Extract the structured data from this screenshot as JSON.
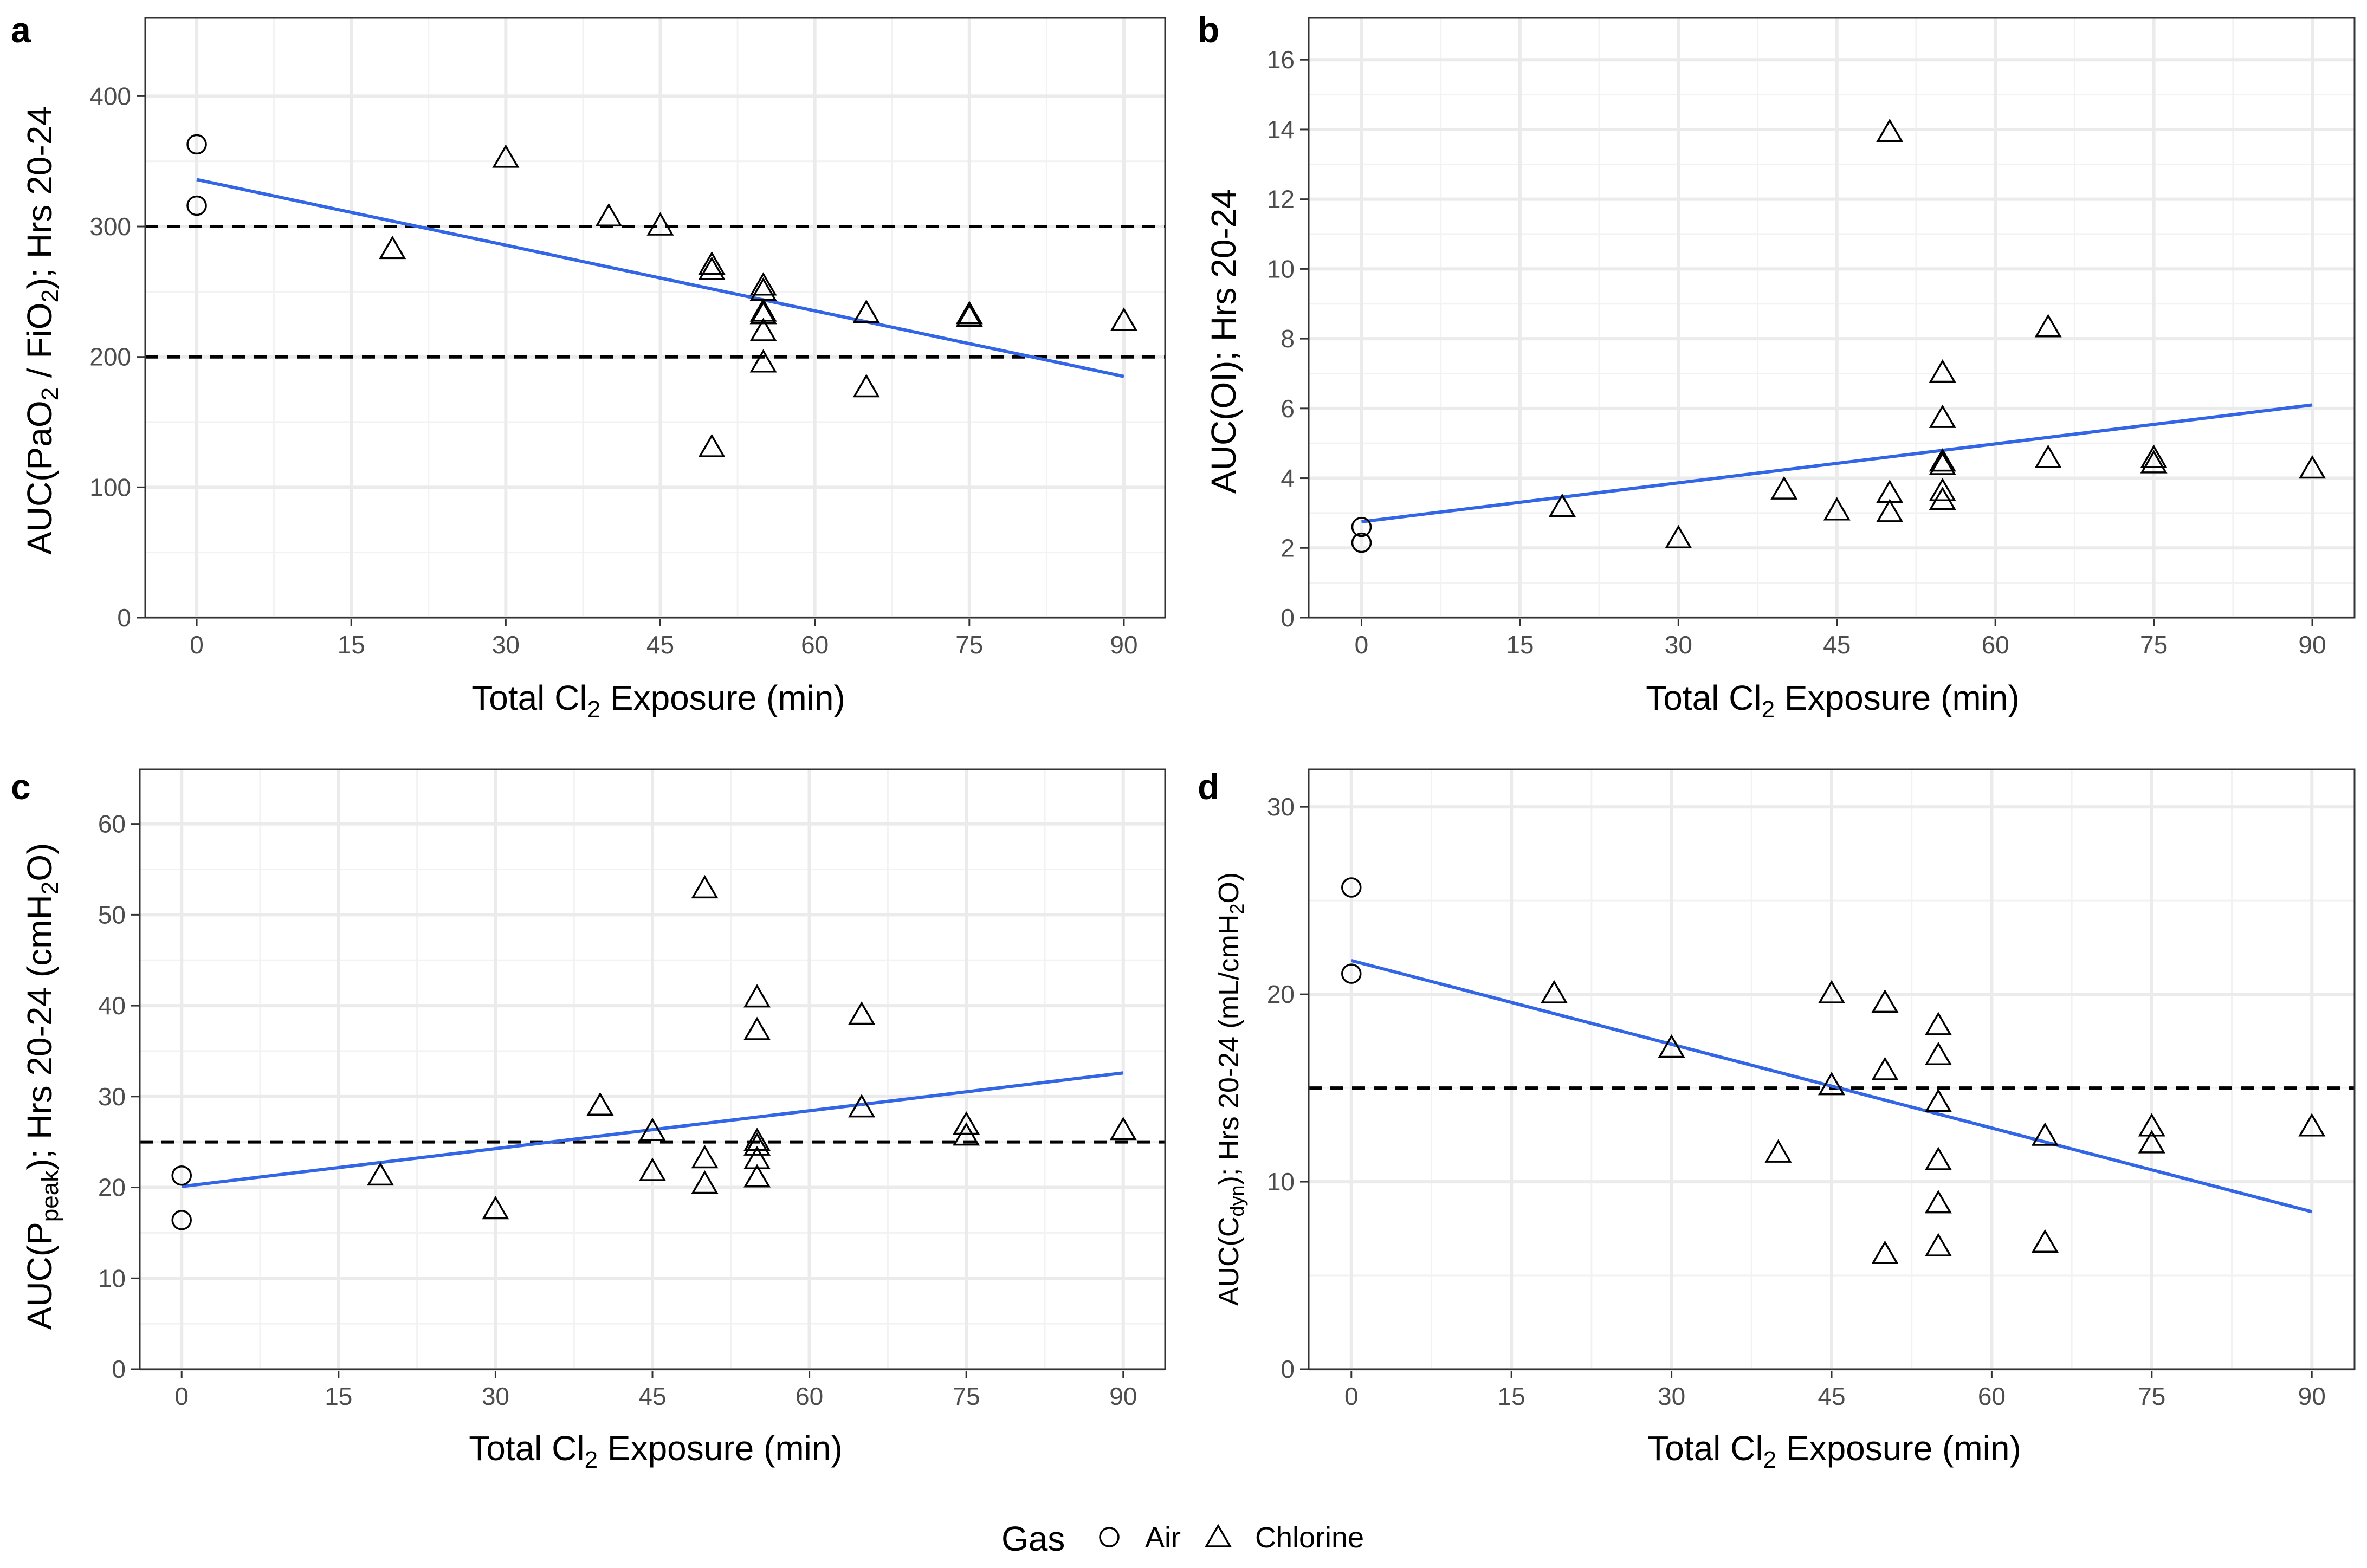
{
  "colors": {
    "fit_line": "#3366e6",
    "reference_line": "#000000",
    "grid": "#ebebeb",
    "points": "#000000"
  },
  "legend": {
    "title": "Gas",
    "items": [
      {
        "label": "Air",
        "shape": "circle"
      },
      {
        "label": "Chlorine",
        "shape": "triangle"
      }
    ]
  },
  "chart_data": [
    {
      "type": "scatter",
      "panel": "a",
      "title": "",
      "xlabel": "Total Cl2 Exposure (min)",
      "ylabel": "AUC(PaO2 / FiO2); Hrs 20-24",
      "xlim": [
        -5,
        94
      ],
      "ylim": [
        0,
        460
      ],
      "xticks": [
        0,
        15,
        30,
        45,
        60,
        75,
        90
      ],
      "yticks": [
        0,
        100,
        200,
        300,
        400
      ],
      "reference_lines": [
        300,
        200
      ],
      "fit_line": {
        "x": [
          0,
          90
        ],
        "y": [
          336,
          185
        ]
      },
      "series": [
        {
          "name": "Air",
          "shape": "circle",
          "points": [
            [
              0,
              363
            ],
            [
              0,
              316
            ]
          ]
        },
        {
          "name": "Chlorine",
          "shape": "triangle",
          "points": [
            [
              19,
              282
            ],
            [
              30,
              352
            ],
            [
              40,
              307
            ],
            [
              45,
              300
            ],
            [
              50,
              270
            ],
            [
              50,
              266
            ],
            [
              50,
              130
            ],
            [
              55,
              254
            ],
            [
              55,
              250
            ],
            [
              55,
              234
            ],
            [
              55,
              232
            ],
            [
              55,
              219
            ],
            [
              55,
              195
            ],
            [
              65,
              233
            ],
            [
              65,
              176
            ],
            [
              75,
              232
            ],
            [
              75,
              230
            ],
            [
              90,
              227
            ]
          ]
        }
      ]
    },
    {
      "type": "scatter",
      "panel": "b",
      "title": "",
      "xlabel": "Total Cl2 Exposure (min)",
      "ylabel": "AUC(OI); Hrs 20-24",
      "xlim": [
        -5,
        94
      ],
      "ylim": [
        0,
        17.2
      ],
      "xticks": [
        0,
        15,
        30,
        45,
        60,
        75,
        90
      ],
      "yticks": [
        0,
        2,
        4,
        6,
        8,
        10,
        12,
        14,
        16
      ],
      "reference_lines": [],
      "fit_line": {
        "x": [
          0,
          90
        ],
        "y": [
          2.75,
          6.1
        ]
      },
      "series": [
        {
          "name": "Air",
          "shape": "circle",
          "points": [
            [
              0,
              2.6
            ],
            [
              0,
              2.15
            ]
          ]
        },
        {
          "name": "Chlorine",
          "shape": "triangle",
          "points": [
            [
              19,
              3.15
            ],
            [
              30,
              2.25
            ],
            [
              40,
              3.65
            ],
            [
              45,
              3.05
            ],
            [
              50,
              13.9
            ],
            [
              50,
              3.55
            ],
            [
              50,
              3.0
            ],
            [
              55,
              7.0
            ],
            [
              55,
              5.7
            ],
            [
              55,
              4.45
            ],
            [
              55,
              4.35
            ],
            [
              55,
              3.6
            ],
            [
              55,
              3.35
            ],
            [
              65,
              8.3
            ],
            [
              65,
              4.55
            ],
            [
              75,
              4.55
            ],
            [
              75,
              4.4
            ],
            [
              90,
              4.25
            ]
          ]
        }
      ]
    },
    {
      "type": "scatter",
      "panel": "c",
      "title": "",
      "xlabel": "Total Cl2 Exposure (min)",
      "ylabel": "AUC(Ppeak); Hrs 20-24 (cmH2O)",
      "xlim": [
        -4,
        94
      ],
      "ylim": [
        0,
        66
      ],
      "xticks": [
        0,
        15,
        30,
        45,
        60,
        75,
        90
      ],
      "yticks": [
        0,
        10,
        20,
        30,
        40,
        50,
        60
      ],
      "reference_lines": [
        25
      ],
      "fit_line": {
        "x": [
          0,
          90
        ],
        "y": [
          20.1,
          32.6
        ]
      },
      "series": [
        {
          "name": "Air",
          "shape": "circle",
          "points": [
            [
              0,
              21.3
            ],
            [
              0,
              16.4
            ]
          ]
        },
        {
          "name": "Chlorine",
          "shape": "triangle",
          "points": [
            [
              19,
              21.2
            ],
            [
              30,
              17.5
            ],
            [
              40,
              28.9
            ],
            [
              45,
              26.1
            ],
            [
              45,
              21.7
            ],
            [
              50,
              52.8
            ],
            [
              50,
              23.1
            ],
            [
              50,
              20.3
            ],
            [
              55,
              40.8
            ],
            [
              55,
              37.2
            ],
            [
              55,
              25.0
            ],
            [
              55,
              24.5
            ],
            [
              55,
              23.0
            ],
            [
              55,
              21.0
            ],
            [
              65,
              38.9
            ],
            [
              65,
              28.7
            ],
            [
              75,
              26.8
            ],
            [
              75,
              25.6
            ],
            [
              90,
              26.2
            ]
          ]
        }
      ]
    },
    {
      "type": "scatter",
      "panel": "d",
      "title": "",
      "xlabel": "Total Cl2 Exposure (min)",
      "ylabel": "AUC(Cdyn); Hrs 20-24 (mL/cmH2O)",
      "xlim": [
        -4,
        94
      ],
      "ylim": [
        0,
        32
      ],
      "xticks": [
        0,
        15,
        30,
        45,
        60,
        75,
        90
      ],
      "yticks": [
        0,
        10,
        20,
        30
      ],
      "reference_lines": [
        15
      ],
      "fit_line": {
        "x": [
          0,
          90
        ],
        "y": [
          21.8,
          8.4
        ]
      },
      "series": [
        {
          "name": "Air",
          "shape": "circle",
          "points": [
            [
              0,
              25.7
            ],
            [
              0,
              21.1
            ]
          ]
        },
        {
          "name": "Chlorine",
          "shape": "triangle",
          "points": [
            [
              19,
              20.0
            ],
            [
              30,
              17.1
            ],
            [
              40,
              11.5
            ],
            [
              45,
              20.0
            ],
            [
              45,
              15.1
            ],
            [
              50,
              19.5
            ],
            [
              50,
              15.9
            ],
            [
              50,
              6.1
            ],
            [
              55,
              18.3
            ],
            [
              55,
              16.7
            ],
            [
              55,
              14.2
            ],
            [
              55,
              11.1
            ],
            [
              55,
              8.8
            ],
            [
              55,
              6.5
            ],
            [
              65,
              12.4
            ],
            [
              65,
              6.7
            ],
            [
              75,
              12.9
            ],
            [
              75,
              12.0
            ],
            [
              90,
              12.9
            ]
          ]
        }
      ]
    }
  ]
}
